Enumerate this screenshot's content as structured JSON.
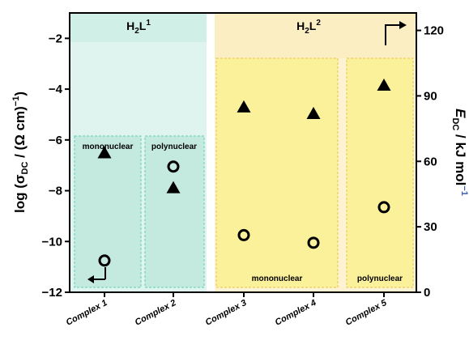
{
  "chart_data": {
    "type": "scatter",
    "categories": [
      "Complex 1",
      "Complex 2",
      "Complex 3",
      "Complex 4",
      "Complex 5"
    ],
    "left_axis": {
      "label_main": "log (σ",
      "label_sub": "DC",
      "label_rest": " / (Ω cm)",
      "label_sup": "−1",
      "label_close": ")",
      "ylim": [
        -12,
        -1
      ],
      "ticks": [
        -12,
        -10,
        -8,
        -6,
        -4,
        -2
      ],
      "tick_labels": [
        "−12",
        "−10",
        "−8",
        "−6",
        "−4",
        "−2"
      ]
    },
    "right_axis": {
      "label_main": "E",
      "label_sub": "DC",
      "label_rest": " / kJ mol",
      "label_sup": "−1",
      "ylim": [
        0,
        128
      ],
      "ticks": [
        0,
        30,
        60,
        90,
        120
      ],
      "tick_labels": [
        "0",
        "30",
        "60",
        "90",
        "120"
      ]
    },
    "series": [
      {
        "name": "log σDC",
        "marker": "circle",
        "axis": "left",
        "values": [
          -10.75,
          -7.05,
          -9.75,
          -10.05,
          -8.65
        ]
      },
      {
        "name": "EDC",
        "marker": "triangle",
        "axis": "right",
        "values": [
          64,
          48,
          85,
          82,
          95
        ]
      }
    ],
    "groups": [
      {
        "label_main": "H",
        "label_sub": "2",
        "label_mid": "L",
        "label_sup": "1",
        "color": "#d4f0e8"
      },
      {
        "label_main": "H",
        "label_sub": "2",
        "label_mid": "L",
        "label_sup": "2",
        "color": "#fbeec2"
      }
    ],
    "sub_groups": [
      {
        "label": "mononuclear",
        "color": "#c4e9de",
        "border": "#5fd0b2"
      },
      {
        "label": "polynuclear",
        "color": "#c4e9de",
        "border": "#5fd0b2"
      },
      {
        "label": "mononuclear",
        "color": "#fbf19a",
        "border": "#e8c64a"
      },
      {
        "label": "polynuclear",
        "color": "#fbf19a",
        "border": "#e8c64a"
      }
    ]
  }
}
